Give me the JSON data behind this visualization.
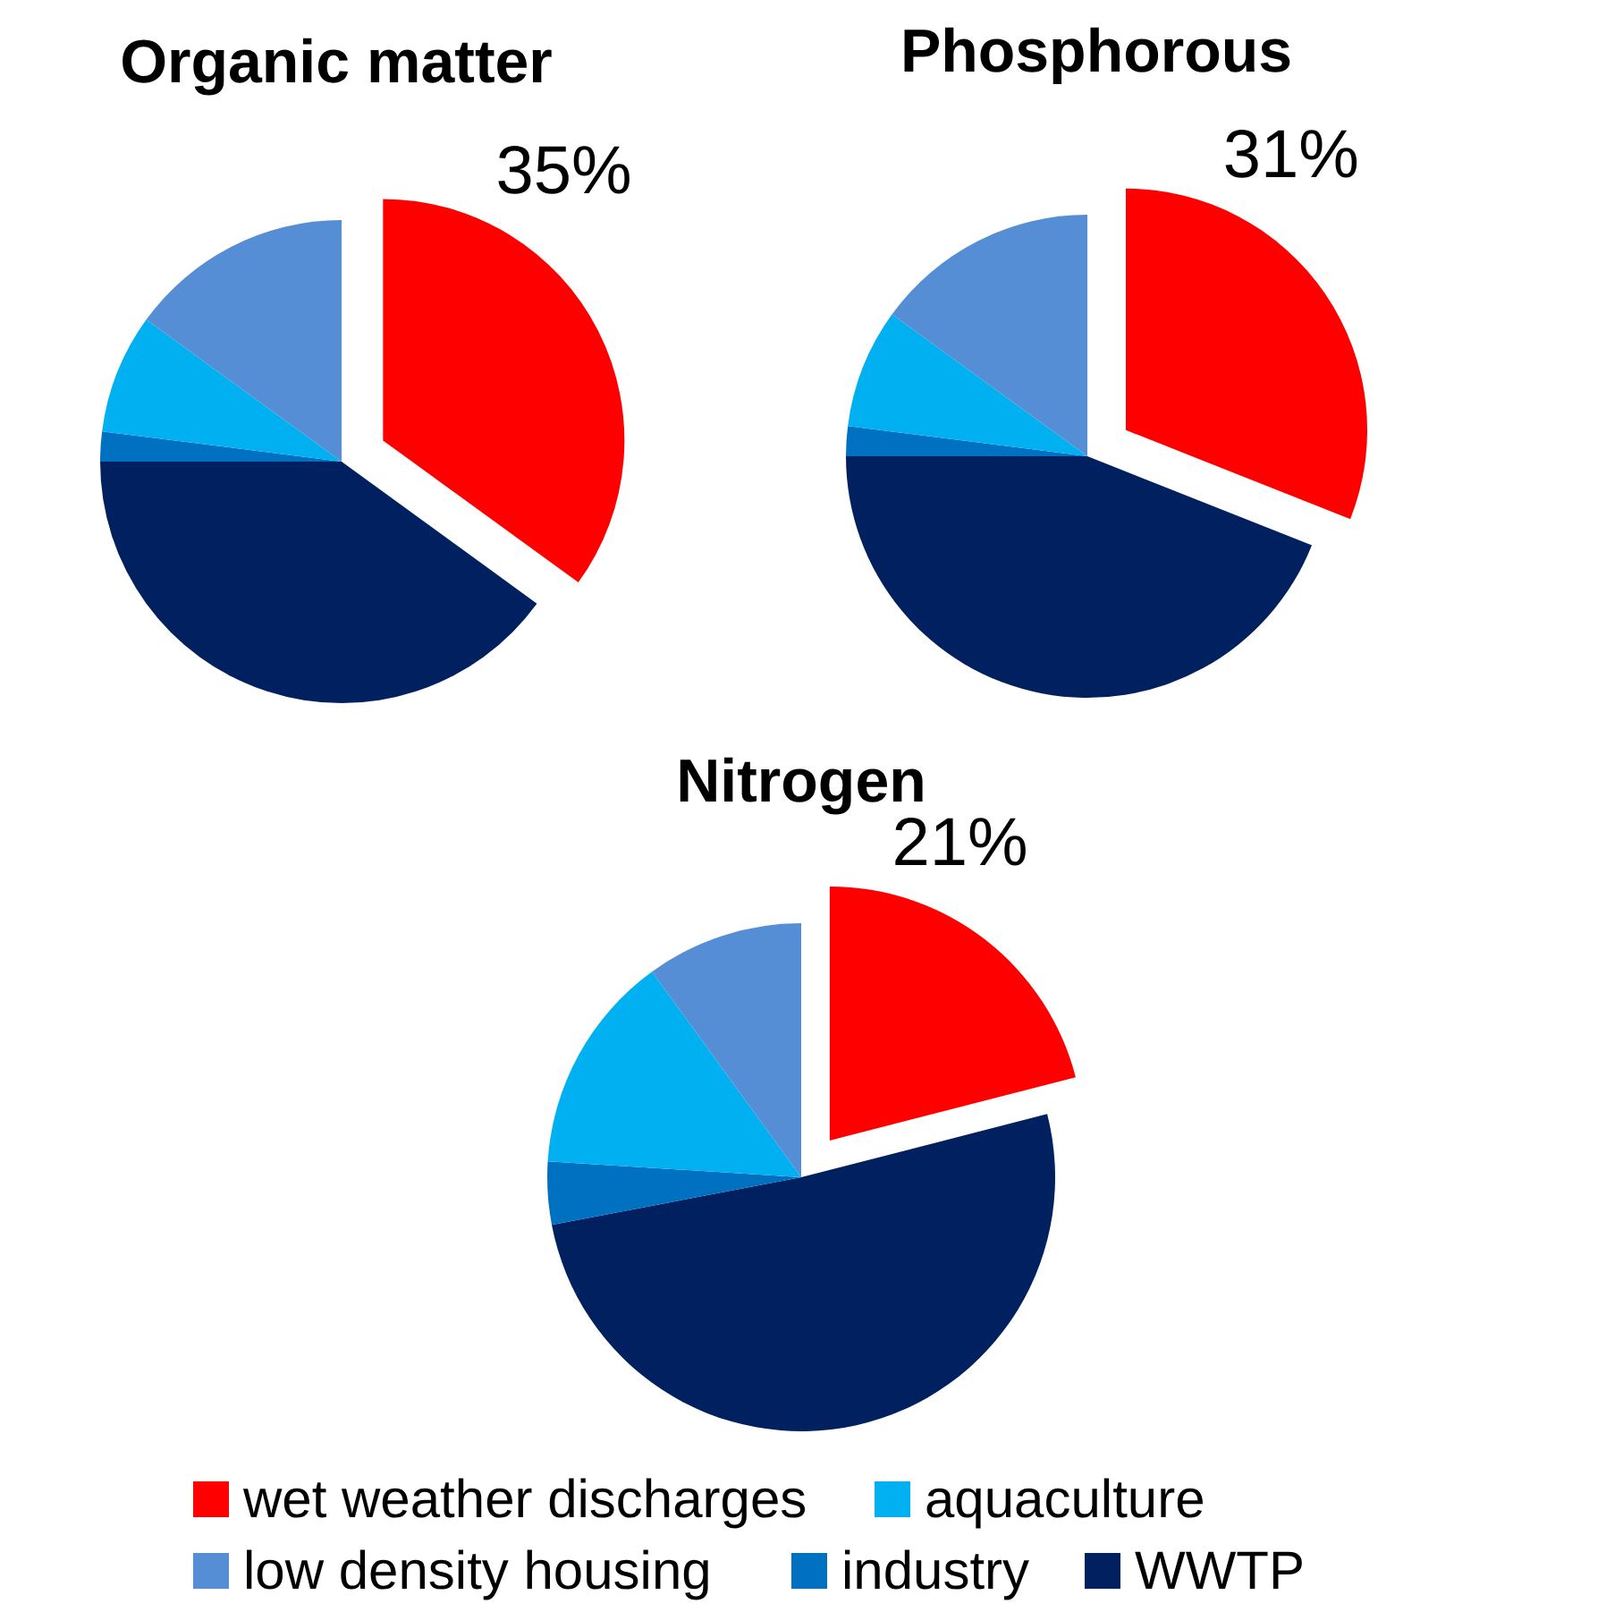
{
  "chart_data": [
    {
      "type": "pie",
      "title": "Organic matter",
      "categories": [
        "wet weather discharges",
        "WWTP",
        "industry",
        "aquaculture",
        "low density housing"
      ],
      "values": [
        35,
        40,
        2,
        8,
        15
      ],
      "colors": [
        "#ff0000",
        "#002060",
        "#0070c0",
        "#00b0f0",
        "#558ed5"
      ],
      "value_labels": [
        "35%",
        null,
        null,
        null,
        null
      ],
      "legend": "bottom"
    },
    {
      "type": "pie",
      "title": "Phosphorous",
      "categories": [
        null,
        null,
        null,
        null,
        null
      ],
      "values": [
        31,
        44,
        2,
        8,
        15
      ],
      "colors": [
        "#ff0000",
        "#002060",
        "#0070c0",
        "#00b0f0",
        "#558ed5"
      ],
      "value_labels": [
        "31%",
        null,
        null,
        null,
        null
      ]
    },
    {
      "type": "pie",
      "title": "Nitrogen",
      "categories": [
        null,
        null,
        null,
        null,
        null
      ],
      "values": [
        21,
        51,
        4,
        14,
        10
      ],
      "colors": [
        "#ff0000",
        "#002060",
        "#0070c0",
        "#00b0f0",
        "#558ed5"
      ],
      "value_labels": [
        "21%",
        null,
        null,
        null,
        null
      ]
    }
  ]
}
